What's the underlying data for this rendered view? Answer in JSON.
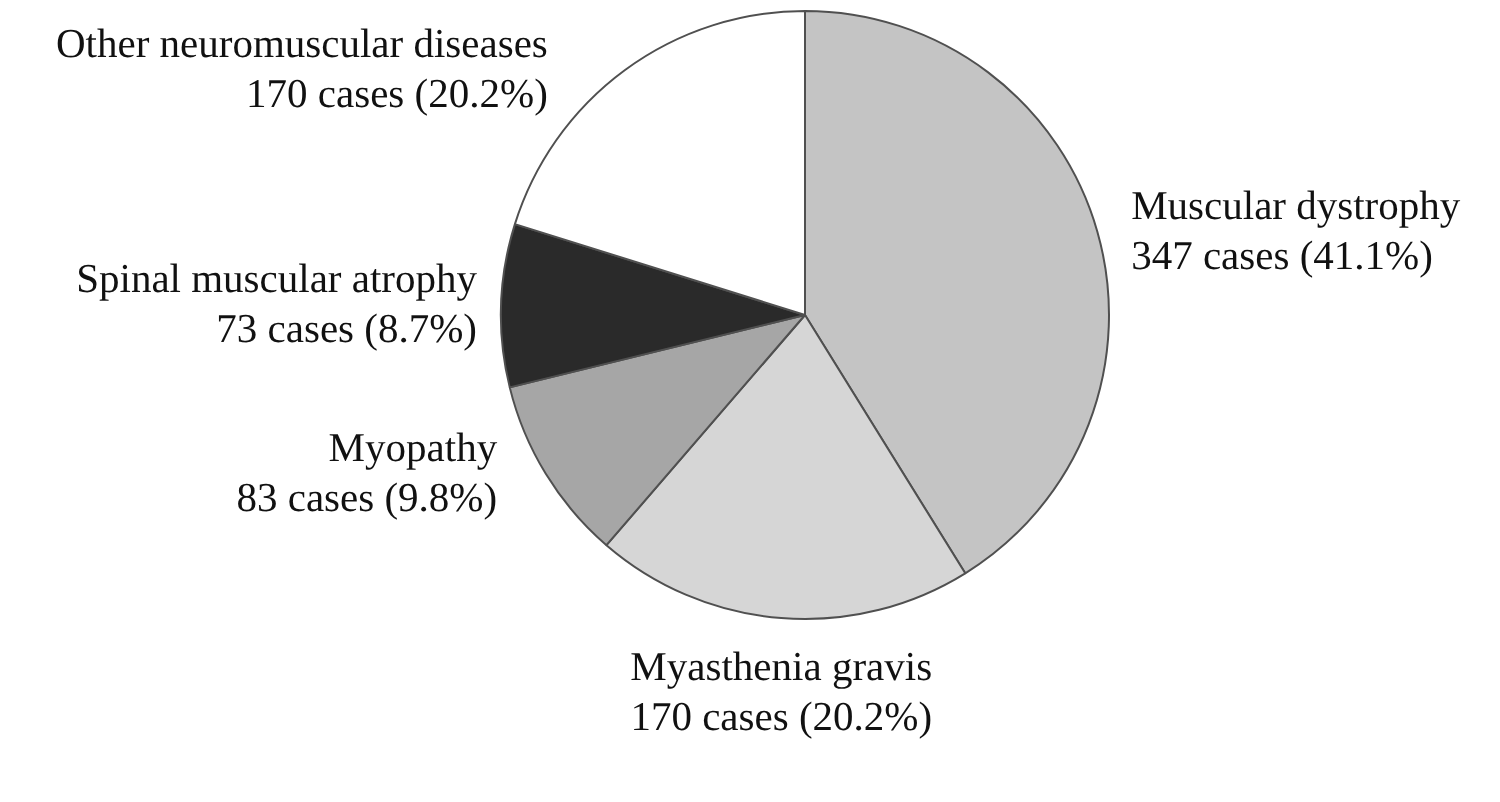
{
  "chart_data": {
    "type": "pie",
    "categories": [
      "Muscular dystrophy",
      "Myasthenia gravis",
      "Myopathy",
      "Spinal muscular atrophy",
      "Other neuromuscular diseases"
    ],
    "values": [
      347,
      170,
      83,
      73,
      170
    ],
    "colors": [
      "#c4c4c4",
      "#d6d6d6",
      "#a6a6a6",
      "#2a2a2a",
      "#ffffff"
    ],
    "value_labels": [
      "347 cases (41.1%)",
      "170 cases (20.2%)",
      "83 cases (9.8%)",
      "73 cases (8.7%)",
      "170 cases (20.2%)"
    ]
  }
}
